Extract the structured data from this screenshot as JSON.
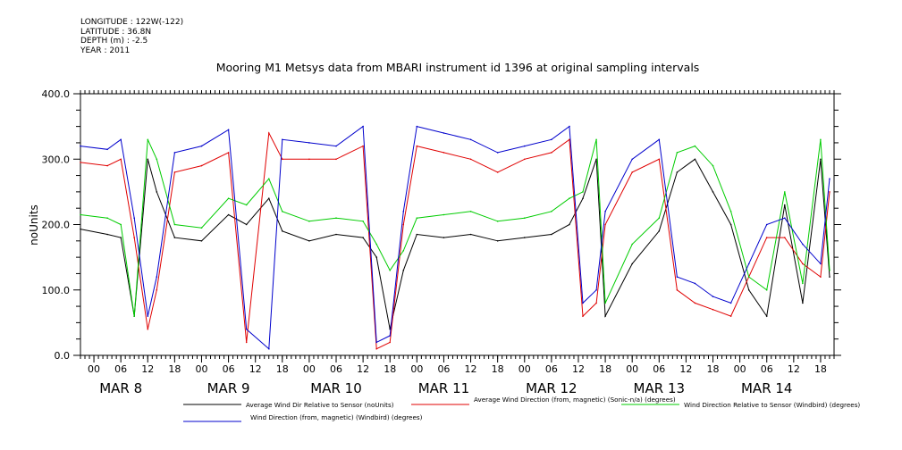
{
  "header": {
    "longitude": "LONGITUDE : 122W(-122)",
    "latitude": "LATITUDE : 36.8N",
    "depth": "DEPTH (m) : -2.5",
    "year": "YEAR : 2011"
  },
  "chart_data": {
    "type": "line",
    "title": "Mooring M1 Metsys data from MBARI instrument id 1396 at original sampling intervals",
    "xlabel": "",
    "ylabel": "noUnits",
    "xlim": [
      "2011-03-07T21:00",
      "2011-03-14T21:00"
    ],
    "ylim": [
      0,
      400
    ],
    "yticks": [
      0,
      100,
      200,
      300,
      400
    ],
    "x_tick_labels": [
      "00",
      "06",
      "12",
      "18",
      "00",
      "06",
      "12",
      "18",
      "00",
      "06",
      "12",
      "18",
      "00",
      "06",
      "12",
      "18",
      "00",
      "06",
      "12",
      "18",
      "00",
      "06",
      "12",
      "18",
      "00",
      "06",
      "12",
      "18"
    ],
    "date_labels": [
      "MAR  8",
      "MAR  9",
      "MAR 10",
      "MAR 11",
      "MAR 12",
      "MAR 13",
      "MAR 14"
    ],
    "grid": false,
    "legend_position": "bottom",
    "series_colors": [
      "#000000",
      "#e00000",
      "#00cc00",
      "#0000cc"
    ],
    "series": [
      {
        "name": "Average Wind Dir Relative to Sensor (noUnits)",
        "color": "#000000",
        "x": [
          "2011-03-07T21:00",
          "2011-03-08T03:00",
          "2011-03-08T06:00",
          "2011-03-08T09:00",
          "2011-03-08T12:00",
          "2011-03-08T14:00",
          "2011-03-08T18:00",
          "2011-03-09T00:00",
          "2011-03-09T06:00",
          "2011-03-09T10:00",
          "2011-03-09T15:00",
          "2011-03-09T18:00",
          "2011-03-10T00:00",
          "2011-03-10T06:00",
          "2011-03-10T12:00",
          "2011-03-10T15:00",
          "2011-03-10T18:00",
          "2011-03-10T21:00",
          "2011-03-11T00:00",
          "2011-03-11T06:00",
          "2011-03-11T12:00",
          "2011-03-11T18:00",
          "2011-03-12T00:00",
          "2011-03-12T06:00",
          "2011-03-12T10:00",
          "2011-03-12T13:00",
          "2011-03-12T16:00",
          "2011-03-12T18:00",
          "2011-03-13T00:00",
          "2011-03-13T06:00",
          "2011-03-13T10:00",
          "2011-03-13T14:00",
          "2011-03-13T18:00",
          "2011-03-13T22:00",
          "2011-03-14T02:00",
          "2011-03-14T06:00",
          "2011-03-14T10:00",
          "2011-03-14T14:00",
          "2011-03-14T18:00",
          "2011-03-14T20:00"
        ],
        "values": [
          193,
          185,
          180,
          60,
          300,
          250,
          180,
          175,
          215,
          200,
          240,
          190,
          175,
          185,
          180,
          150,
          40,
          130,
          185,
          180,
          185,
          175,
          180,
          185,
          200,
          240,
          300,
          60,
          140,
          190,
          280,
          300,
          250,
          200,
          100,
          60,
          230,
          80,
          300,
          120
        ]
      },
      {
        "name": "Average Wind Direction (from, magnetic) (Sonic-n/a) (degrees)",
        "color": "#e00000",
        "x": [
          "2011-03-07T21:00",
          "2011-03-08T03:00",
          "2011-03-08T06:00",
          "2011-03-08T09:00",
          "2011-03-08T12:00",
          "2011-03-08T14:00",
          "2011-03-08T18:00",
          "2011-03-09T00:00",
          "2011-03-09T06:00",
          "2011-03-09T10:00",
          "2011-03-09T15:00",
          "2011-03-09T18:00",
          "2011-03-10T00:00",
          "2011-03-10T06:00",
          "2011-03-10T12:00",
          "2011-03-10T15:00",
          "2011-03-10T18:00",
          "2011-03-10T21:00",
          "2011-03-11T00:00",
          "2011-03-11T06:00",
          "2011-03-11T12:00",
          "2011-03-11T18:00",
          "2011-03-12T00:00",
          "2011-03-12T06:00",
          "2011-03-12T10:00",
          "2011-03-12T13:00",
          "2011-03-12T16:00",
          "2011-03-12T18:00",
          "2011-03-13T00:00",
          "2011-03-13T06:00",
          "2011-03-13T10:00",
          "2011-03-13T14:00",
          "2011-03-13T18:00",
          "2011-03-13T22:00",
          "2011-03-14T02:00",
          "2011-03-14T06:00",
          "2011-03-14T10:00",
          "2011-03-14T14:00",
          "2011-03-14T18:00",
          "2011-03-14T20:00"
        ],
        "values": [
          295,
          290,
          300,
          180,
          40,
          100,
          280,
          290,
          310,
          20,
          340,
          300,
          300,
          300,
          320,
          10,
          20,
          200,
          320,
          310,
          300,
          280,
          300,
          310,
          330,
          60,
          80,
          200,
          280,
          300,
          100,
          80,
          70,
          60,
          120,
          180,
          180,
          140,
          120,
          250
        ]
      },
      {
        "name": "Wind Direction Relative to Sensor (Windbird) (degrees)",
        "color": "#00cc00",
        "x": [
          "2011-03-07T21:00",
          "2011-03-08T03:00",
          "2011-03-08T06:00",
          "2011-03-08T09:00",
          "2011-03-08T12:00",
          "2011-03-08T14:00",
          "2011-03-08T18:00",
          "2011-03-09T00:00",
          "2011-03-09T06:00",
          "2011-03-09T10:00",
          "2011-03-09T15:00",
          "2011-03-09T18:00",
          "2011-03-10T00:00",
          "2011-03-10T06:00",
          "2011-03-10T12:00",
          "2011-03-10T15:00",
          "2011-03-10T18:00",
          "2011-03-10T21:00",
          "2011-03-11T00:00",
          "2011-03-11T06:00",
          "2011-03-11T12:00",
          "2011-03-11T18:00",
          "2011-03-12T00:00",
          "2011-03-12T06:00",
          "2011-03-12T10:00",
          "2011-03-12T13:00",
          "2011-03-12T16:00",
          "2011-03-12T18:00",
          "2011-03-13T00:00",
          "2011-03-13T06:00",
          "2011-03-13T10:00",
          "2011-03-13T14:00",
          "2011-03-13T18:00",
          "2011-03-13T22:00",
          "2011-03-14T02:00",
          "2011-03-14T06:00",
          "2011-03-14T10:00",
          "2011-03-14T14:00",
          "2011-03-14T18:00",
          "2011-03-14T20:00"
        ],
        "values": [
          215,
          210,
          200,
          60,
          330,
          300,
          200,
          195,
          240,
          230,
          270,
          220,
          205,
          210,
          205,
          170,
          130,
          160,
          210,
          215,
          220,
          205,
          210,
          220,
          240,
          250,
          330,
          80,
          170,
          210,
          310,
          320,
          290,
          220,
          120,
          100,
          250,
          110,
          330,
          130
        ]
      },
      {
        "name": "Wind Direction (from, magnetic) (Windbird) (degrees)",
        "color": "#0000cc",
        "x": [
          "2011-03-07T21:00",
          "2011-03-08T03:00",
          "2011-03-08T06:00",
          "2011-03-08T09:00",
          "2011-03-08T12:00",
          "2011-03-08T14:00",
          "2011-03-08T18:00",
          "2011-03-09T00:00",
          "2011-03-09T06:00",
          "2011-03-09T10:00",
          "2011-03-09T15:00",
          "2011-03-09T18:00",
          "2011-03-10T00:00",
          "2011-03-10T06:00",
          "2011-03-10T12:00",
          "2011-03-10T15:00",
          "2011-03-10T18:00",
          "2011-03-10T21:00",
          "2011-03-11T00:00",
          "2011-03-11T06:00",
          "2011-03-11T12:00",
          "2011-03-11T18:00",
          "2011-03-12T00:00",
          "2011-03-12T06:00",
          "2011-03-12T10:00",
          "2011-03-12T13:00",
          "2011-03-12T16:00",
          "2011-03-12T18:00",
          "2011-03-13T00:00",
          "2011-03-13T06:00",
          "2011-03-13T10:00",
          "2011-03-13T14:00",
          "2011-03-13T18:00",
          "2011-03-13T22:00",
          "2011-03-14T02:00",
          "2011-03-14T06:00",
          "2011-03-14T10:00",
          "2011-03-14T14:00",
          "2011-03-14T18:00",
          "2011-03-14T20:00"
        ],
        "values": [
          320,
          315,
          330,
          210,
          60,
          120,
          310,
          320,
          345,
          40,
          10,
          330,
          325,
          320,
          350,
          20,
          30,
          220,
          350,
          340,
          330,
          310,
          320,
          330,
          350,
          80,
          100,
          220,
          300,
          330,
          120,
          110,
          90,
          80,
          140,
          200,
          210,
          170,
          140,
          270
        ]
      }
    ]
  }
}
